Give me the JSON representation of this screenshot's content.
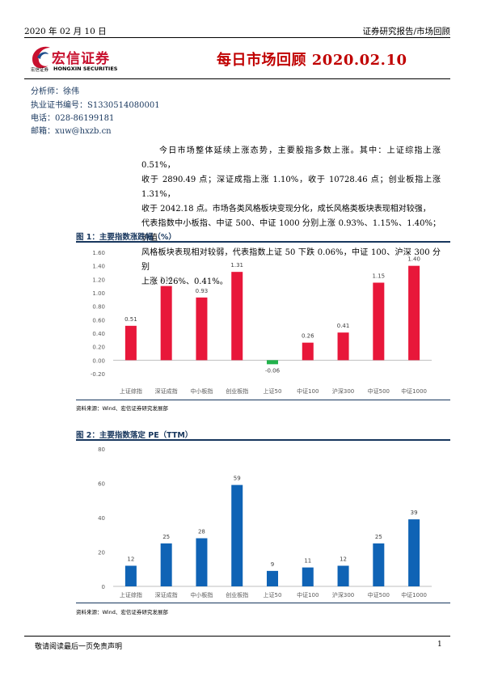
{
  "header": {
    "date": "2020 年 02 月 10 日",
    "category": "证券研究报告/市场回顾",
    "title": "每日市场回顾 2020.02.10"
  },
  "logo": {
    "name_cn": "宏信证券",
    "name_en": "HONGXIN SECURITIES",
    "small_cn": "宏信证券"
  },
  "analyst": {
    "name": "分析师：徐伟",
    "cert": "执业证书编号：S1330514080001",
    "phone": "电话：028-86199181",
    "email": "邮箱：xuw@hxzb.cn"
  },
  "summary": {
    "lines": [
      "今日市场整体延续上涨态势，主要股指多数上涨。其中：上证综指上涨 0.51%，",
      "收于 2890.49 点；深证成指上涨 1.10%，收于 10728.46 点；创业板指上涨 1.31%，",
      "收于 2042.18 点。市场各类风格板块变现分化，成长风格类板块表现相对较强，",
      "代表指数中小板指、中证 500、中证 1000 分别上涨 0.93%、1.15%、1.40%；价值",
      "风格板块表现相对较弱，代表指数上证 50 下跌 0.06%，中证 100、沪深 300 分别",
      "上涨 0.26%、0.41%。"
    ]
  },
  "figure1": {
    "title": "图 1：主要指数涨跌幅（%）",
    "source": "资料来源：Wind、宏信证券研究发展部"
  },
  "figure2": {
    "title": "图 2：主要指数落定 PE（TTM）",
    "source": "资料来源：Wind、宏信证券研究发展部"
  },
  "footer": {
    "disclaimer": "敬请阅读最后一页免责声明",
    "page": "1"
  },
  "colors": {
    "up": "#e8173a",
    "down": "#22b24c",
    "pe": "#0f63b5",
    "accent": "#17365d"
  },
  "chart_data": [
    {
      "type": "bar",
      "title": "图 1：主要指数涨跌幅（%）",
      "categories": [
        "上证综指",
        "深证成指",
        "中小板指",
        "创业板指",
        "上证50",
        "中证100",
        "沪深300",
        "中证500",
        "中证1000"
      ],
      "values": [
        0.51,
        1.1,
        0.93,
        1.31,
        -0.06,
        0.26,
        0.41,
        1.15,
        1.4
      ],
      "value_labels": [
        "0.51",
        "1.10",
        "0.93",
        "1.31",
        "-0.06",
        "0.26",
        "0.41",
        "1.15",
        "1.40"
      ],
      "ylim": [
        -0.2,
        1.6
      ],
      "yticks": [
        "-0.20",
        "0.00",
        "0.20",
        "0.40",
        "0.60",
        "0.80",
        "1.00",
        "1.20",
        "1.40",
        "1.60"
      ],
      "xlabel": "",
      "ylabel": "",
      "grid": false
    },
    {
      "type": "bar",
      "title": "图 2：主要指数落定 PE（TTM）",
      "categories": [
        "上证综指",
        "深证成指",
        "中小板指",
        "创业板指",
        "上证50",
        "中证100",
        "沪深300",
        "中证500",
        "中证1000"
      ],
      "values": [
        12,
        25,
        28,
        59,
        9,
        11,
        12,
        25,
        39
      ],
      "value_labels": [
        "12",
        "25",
        "28",
        "59",
        "9",
        "11",
        "12",
        "25",
        "39"
      ],
      "ylim": [
        0,
        80
      ],
      "yticks": [
        "0",
        "20",
        "40",
        "60",
        "80"
      ],
      "xlabel": "",
      "ylabel": "",
      "grid": false
    }
  ]
}
